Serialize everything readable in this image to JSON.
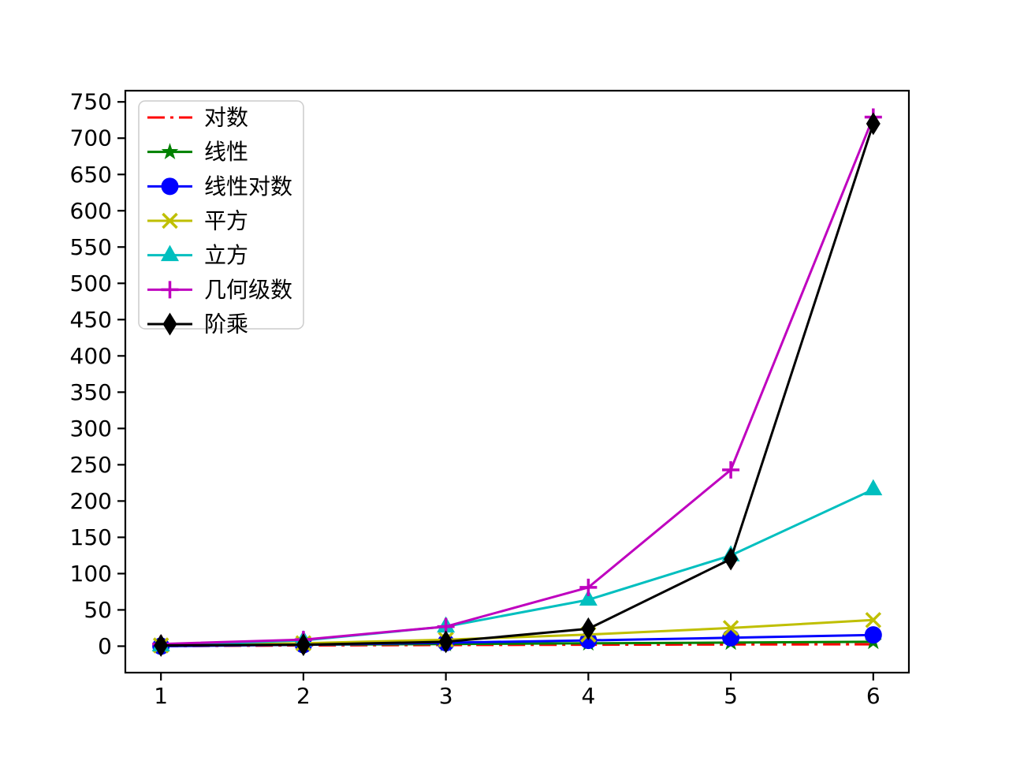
{
  "chart_data": {
    "type": "line",
    "title": "",
    "xlabel": "",
    "ylabel": "",
    "grid": false,
    "background": "#ffffff",
    "frame_color": "#000000",
    "legend_position": "upper-left",
    "legend_border_color": "#cccccc",
    "x": [
      1,
      2,
      3,
      4,
      5,
      6
    ],
    "x_ticks": [
      "1",
      "2",
      "3",
      "4",
      "5",
      "6"
    ],
    "y_ticks": [
      "0",
      "50",
      "100",
      "150",
      "200",
      "250",
      "300",
      "350",
      "400",
      "450",
      "500",
      "550",
      "600",
      "650",
      "700",
      "750"
    ],
    "xlim": [
      0.75,
      6.25
    ],
    "ylim": [
      -36.45,
      765.45
    ],
    "series": [
      {
        "key": "log",
        "name": "对数",
        "color": "#ff0000",
        "linestyle": "dashdot",
        "marker": "none",
        "values": [
          0,
          1,
          1.585,
          2,
          2.322,
          2.585
        ]
      },
      {
        "key": "linear",
        "name": "线性",
        "color": "#008000",
        "linestyle": "solid",
        "marker": "star",
        "values": [
          1,
          2,
          3,
          4,
          5,
          6
        ]
      },
      {
        "key": "linearithmic",
        "name": "线性对数",
        "color": "#0000ff",
        "linestyle": "solid",
        "marker": "circle",
        "values": [
          0,
          2,
          4.755,
          8,
          11.61,
          15.51
        ]
      },
      {
        "key": "square",
        "name": "平方",
        "color": "#bfbf00",
        "linestyle": "solid",
        "marker": "x",
        "values": [
          1,
          4,
          9,
          16,
          25,
          36
        ]
      },
      {
        "key": "cube",
        "name": "立方",
        "color": "#00bfbf",
        "linestyle": "solid",
        "marker": "triangle",
        "values": [
          1,
          8,
          27,
          64,
          125,
          216
        ]
      },
      {
        "key": "geometric",
        "name": "几何级数",
        "color": "#bf00bf",
        "linestyle": "solid",
        "marker": "plus",
        "values": [
          3,
          9,
          27,
          81,
          243,
          729
        ]
      },
      {
        "key": "factorial",
        "name": "阶乘",
        "color": "#000000",
        "linestyle": "solid",
        "marker": "thin-diamond",
        "values": [
          1,
          2,
          6,
          24,
          120,
          720
        ]
      }
    ]
  }
}
